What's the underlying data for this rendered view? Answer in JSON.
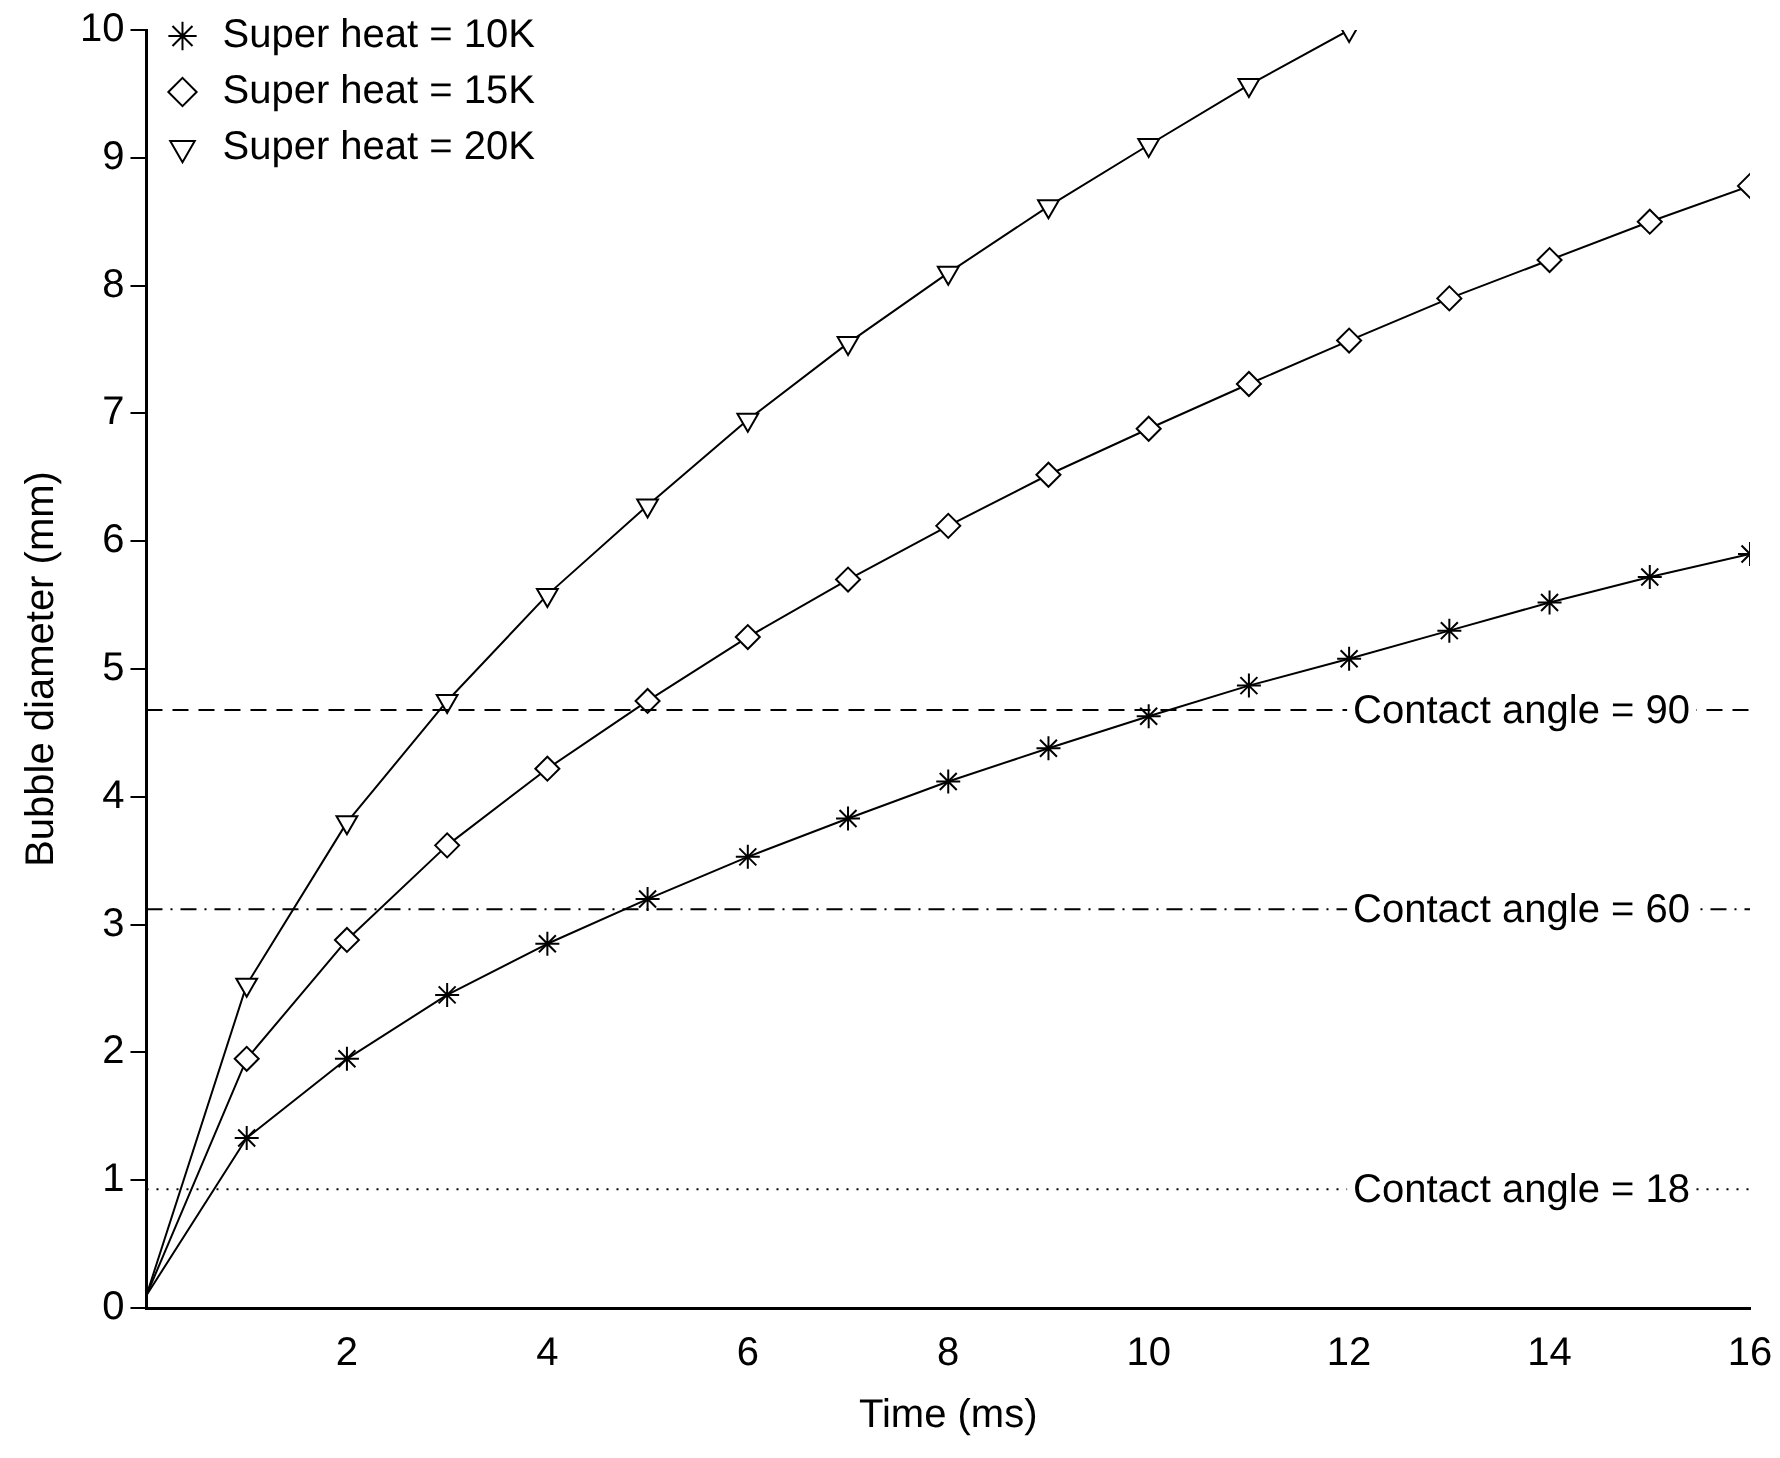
{
  "chart_data": {
    "type": "line",
    "xlabel": "Time (ms)",
    "ylabel": "Bubble diameter (mm)",
    "xlim": [
      0,
      16
    ],
    "xticks": [
      2,
      4,
      6,
      8,
      10,
      12,
      14,
      16
    ],
    "ylim": [
      0,
      10
    ],
    "yticks": [
      0,
      1,
      2,
      3,
      4,
      5,
      6,
      7,
      8,
      9,
      10
    ],
    "grid": false,
    "legend": "top left",
    "line_style": "solid",
    "x": [
      0,
      1,
      2,
      3,
      4,
      5,
      6,
      7,
      8,
      9,
      10,
      11,
      12,
      13,
      14,
      15,
      16
    ],
    "series": [
      {
        "name": "Super heat = 10K",
        "color": "#000000",
        "marker": "cross",
        "values": [
          0.1,
          1.33,
          1.95,
          2.45,
          2.85,
          3.2,
          3.53,
          3.83,
          4.12,
          4.38,
          4.63,
          4.87,
          5.08,
          5.3,
          5.52,
          5.72,
          5.9
        ]
      },
      {
        "name": "Super heat = 15K",
        "color": "#000000",
        "marker": "diamond",
        "values": [
          0.1,
          1.95,
          2.88,
          3.62,
          4.22,
          4.75,
          5.25,
          5.7,
          6.12,
          6.52,
          6.88,
          7.23,
          7.57,
          7.9,
          8.2,
          8.5,
          8.78
        ]
      },
      {
        "name": "Super heat = 20K",
        "color": "#000000",
        "marker": "triangle",
        "values": [
          0.1,
          2.53,
          3.8,
          4.75,
          5.58,
          6.28,
          6.95,
          7.55,
          8.1,
          8.62,
          9.1,
          9.57,
          10.0,
          null,
          null,
          null,
          null
        ]
      }
    ],
    "ref_lines": [
      {
        "axis": "y",
        "value": 4.68,
        "line_style": "dashed",
        "color": "#000000"
      },
      {
        "axis": "y",
        "value": 3.12,
        "line_style": "dashdot",
        "color": "#000000"
      },
      {
        "axis": "y",
        "value": 0.93,
        "line_style": "dotted",
        "color": "#000000"
      }
    ],
    "annotations": [
      {
        "text": "Contact angle = 90",
        "y": 4.68
      },
      {
        "text": "Contact angle = 60",
        "y": 3.12
      },
      {
        "text": "Contact angle = 18",
        "y": 0.93
      }
    ]
  }
}
